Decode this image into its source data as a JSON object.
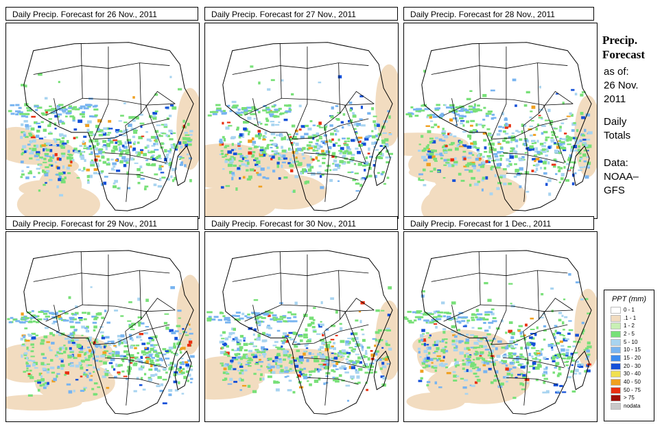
{
  "panels": [
    {
      "title": "Daily Precip. Forecast for  26 Nov., 2011"
    },
    {
      "title": "Daily Precip. Forecast for  27 Nov., 2011"
    },
    {
      "title": "Daily Precip. Forecast for  28 Nov., 2011"
    },
    {
      "title": "Daily Precip. Forecast for  29 Nov., 2011"
    },
    {
      "title": "Daily Precip. Forecast for  30 Nov., 2011"
    },
    {
      "title": "Daily Precip. Forecast for  1 Dec., 2011"
    }
  ],
  "sidebar": {
    "heading": "Precip.\nForecast",
    "asof": "as of:\n26 Nov.\n2011",
    "totals": "Daily\nTotals",
    "source": "Data:\nNOAA–\nGFS"
  },
  "legend": {
    "title": "PPT (mm)",
    "items": [
      {
        "label": "0 - 1",
        "color": "#ffffff"
      },
      {
        "label": ".1 - 1",
        "color": "#f2dcc0"
      },
      {
        "label": "1 - 2",
        "color": "#c8f0b4"
      },
      {
        "label": "2 - 5",
        "color": "#78e078"
      },
      {
        "label": "5 - 10",
        "color": "#a8d4f0"
      },
      {
        "label": "10 - 15",
        "color": "#78b4f0"
      },
      {
        "label": "15 - 20",
        "color": "#3c8cf0"
      },
      {
        "label": "20 - 30",
        "color": "#1450d8"
      },
      {
        "label": "30 - 40",
        "color": "#f0e050"
      },
      {
        "label": "40 - 50",
        "color": "#f0a020"
      },
      {
        "label": "50 - 75",
        "color": "#e83010"
      },
      {
        "label": "> 75",
        "color": "#a01008"
      },
      {
        "label": "nodata",
        "color": "#c8c8c8"
      }
    ]
  }
}
